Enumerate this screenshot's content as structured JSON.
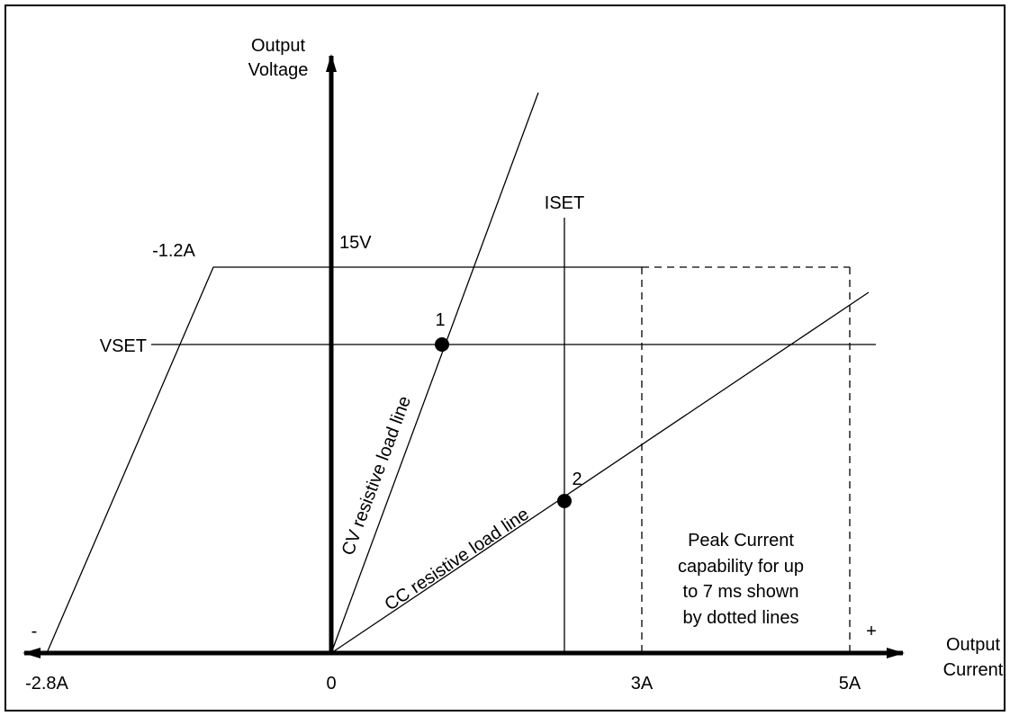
{
  "axes": {
    "y_label_line1": "Output",
    "y_label_line2": "Voltage",
    "x_label_line1": "Output",
    "x_label_line2": "Current",
    "origin_label": "0",
    "minus_sign": "-",
    "plus_sign": "+"
  },
  "ticks": {
    "neg_current": "-2.8A",
    "current_3a": "3A",
    "current_5a": "5A",
    "voltage_15v": "15V",
    "neg_current_top": "-1.2A"
  },
  "setpoints": {
    "vset": "VSET",
    "iset": "ISET"
  },
  "operating_points": [
    {
      "label": "1"
    },
    {
      "label": "2"
    }
  ],
  "load_lines": {
    "cv": "CV resistive load line",
    "cc": "CC resistive load line"
  },
  "note": {
    "line1": "Peak Current",
    "line2": "capability for up",
    "line3": "to 7 ms shown",
    "line4": "by dotted lines"
  },
  "colors": {
    "ink": "#000000",
    "background": "#ffffff"
  }
}
